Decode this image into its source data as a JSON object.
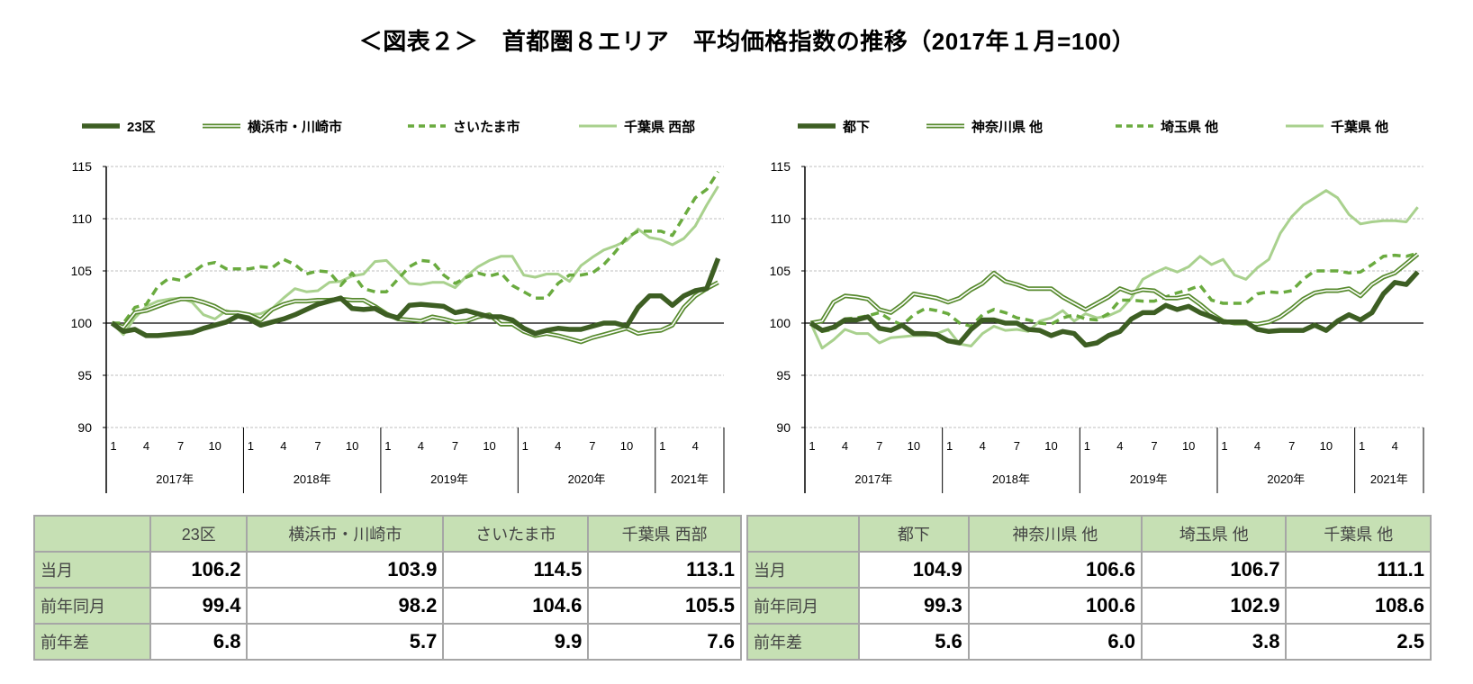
{
  "title": "＜図表２＞　首都圏８エリア　平均価格指数の推移（2017年１月=100）",
  "colors": {
    "dark": "#3d5e23",
    "medium": "#578a2e",
    "dashed": "#6aab3f",
    "light": "#a9d18e",
    "header_bg": "#c6e0b4",
    "grid": "#bfbfbf"
  },
  "chart_data": [
    {
      "type": "line",
      "ylim": [
        90,
        115
      ],
      "yticks": [
        90,
        95,
        100,
        105,
        110,
        115
      ],
      "grid": true,
      "baseline": 100,
      "legend_position": "top",
      "month_ticks": [
        "1",
        "4",
        "7",
        "10",
        "1",
        "4",
        "7",
        "10",
        "1",
        "4",
        "7",
        "10",
        "1",
        "4",
        "7",
        "10",
        "1",
        "4"
      ],
      "years": [
        "2017年",
        "2018年",
        "2019年",
        "2020年",
        "2021年"
      ],
      "x_range": [
        "2017-01",
        "2021-06"
      ],
      "series": [
        {
          "name": "23区",
          "style": "thick-dark",
          "values": [
            100,
            99.2,
            99.4,
            98.8,
            98.8,
            98.9,
            99.0,
            99.1,
            99.5,
            99.8,
            100.1,
            100.7,
            100.4,
            99.8,
            100.1,
            100.4,
            100.8,
            101.3,
            101.8,
            102.1,
            102.4,
            101.4,
            101.3,
            101.4,
            100.8,
            100.5,
            101.7,
            101.8,
            101.7,
            101.6,
            101.0,
            101.2,
            100.9,
            100.6,
            100.6,
            100.3,
            99.5,
            99.0,
            99.3,
            99.5,
            99.4,
            99.4,
            99.7,
            100.0,
            100.0,
            99.7,
            101.5,
            102.6,
            102.6,
            101.7,
            102.6,
            103.1,
            103.3,
            106.2
          ]
        },
        {
          "name": "横浜市・川崎市",
          "style": "double-medium",
          "values": [
            100,
            99.6,
            101.0,
            101.2,
            101.6,
            102.0,
            102.3,
            102.3,
            102.0,
            101.6,
            101.0,
            101.0,
            100.8,
            100.3,
            101.3,
            101.8,
            102.1,
            102.1,
            102.2,
            102.2,
            102.3,
            102.2,
            102.2,
            101.6,
            100.9,
            100.4,
            100.3,
            100.2,
            100.6,
            100.4,
            100.1,
            100.2,
            100.6,
            100.8,
            99.9,
            99.9,
            99.2,
            98.8,
            99.0,
            98.8,
            98.5,
            98.2,
            98.6,
            98.9,
            99.2,
            99.5,
            99.0,
            99.2,
            99.3,
            99.8,
            101.5,
            102.6,
            103.3,
            103.9
          ]
        },
        {
          "name": "さいたま市",
          "style": "dashed",
          "values": [
            100,
            100.0,
            101.5,
            101.8,
            103.5,
            104.3,
            104.1,
            104.8,
            105.6,
            105.8,
            105.2,
            105.2,
            105.2,
            105.4,
            105.3,
            106.1,
            105.6,
            104.7,
            105.0,
            104.9,
            103.6,
            104.8,
            103.3,
            103.0,
            103.0,
            104.2,
            105.4,
            106.0,
            105.9,
            104.6,
            103.8,
            104.4,
            104.8,
            104.5,
            104.8,
            103.6,
            103.0,
            102.4,
            102.4,
            103.8,
            104.6,
            104.6,
            104.8,
            105.6,
            106.8,
            108.2,
            108.8,
            108.8,
            108.8,
            108.4,
            110.2,
            112.0,
            112.8,
            114.5
          ]
        },
        {
          "name": "千葉県 西部",
          "style": "light",
          "values": [
            100,
            98.9,
            100.5,
            101.6,
            102.1,
            102.3,
            102.4,
            102.0,
            100.8,
            100.4,
            101.2,
            100.9,
            100.8,
            100.9,
            101.4,
            102.4,
            103.3,
            103.0,
            103.1,
            103.9,
            104.0,
            104.5,
            104.7,
            105.9,
            106.0,
            104.9,
            103.8,
            103.7,
            103.9,
            103.9,
            103.4,
            104.5,
            105.4,
            106.0,
            106.4,
            106.4,
            104.6,
            104.4,
            104.7,
            104.7,
            104.0,
            105.5,
            106.3,
            107.0,
            107.4,
            107.9,
            109.0,
            108.2,
            108.0,
            107.5,
            108.1,
            109.3,
            111.3,
            113.1
          ]
        }
      ]
    },
    {
      "type": "line",
      "ylim": [
        90,
        115
      ],
      "yticks": [
        90,
        95,
        100,
        105,
        110,
        115
      ],
      "grid": true,
      "baseline": 100,
      "legend_position": "top",
      "month_ticks": [
        "1",
        "4",
        "7",
        "10",
        "1",
        "4",
        "7",
        "10",
        "1",
        "4",
        "7",
        "10",
        "1",
        "4",
        "7",
        "10",
        "1",
        "4"
      ],
      "years": [
        "2017年",
        "2018年",
        "2019年",
        "2020年",
        "2021年"
      ],
      "x_range": [
        "2017-01",
        "2021-06"
      ],
      "series": [
        {
          "name": "都下",
          "style": "thick-dark",
          "values": [
            100,
            99.3,
            99.6,
            100.3,
            100.3,
            100.6,
            99.5,
            99.3,
            99.8,
            99.0,
            99.0,
            98.9,
            98.3,
            98.1,
            99.4,
            100.3,
            100.3,
            100.0,
            100.0,
            99.4,
            99.3,
            98.8,
            99.2,
            99.0,
            97.9,
            98.1,
            98.8,
            99.2,
            100.4,
            101.0,
            101.0,
            101.7,
            101.3,
            101.6,
            101.0,
            100.6,
            100.1,
            100.1,
            100.1,
            99.4,
            99.2,
            99.3,
            99.3,
            99.3,
            99.8,
            99.3,
            100.2,
            100.8,
            100.3,
            101.0,
            102.8,
            103.9,
            103.7,
            104.9
          ]
        },
        {
          "name": "神奈川県 他",
          "style": "double-medium",
          "values": [
            100,
            100.2,
            102.0,
            102.6,
            102.5,
            102.3,
            101.3,
            101.0,
            101.8,
            102.8,
            102.6,
            102.4,
            102.0,
            102.4,
            103.2,
            103.8,
            104.8,
            104.0,
            103.7,
            103.3,
            103.3,
            103.3,
            102.5,
            101.9,
            101.3,
            101.9,
            102.5,
            103.3,
            102.9,
            103.2,
            103.1,
            102.4,
            102.4,
            102.6,
            101.8,
            100.9,
            100.2,
            100.0,
            100.0,
            99.9,
            100.1,
            100.6,
            101.4,
            102.3,
            102.9,
            103.1,
            103.1,
            103.3,
            102.6,
            103.7,
            104.4,
            104.8,
            105.7,
            106.6
          ]
        },
        {
          "name": "埼玉県 他",
          "style": "dashed",
          "values": [
            100,
            99.2,
            99.4,
            100.4,
            100.5,
            100.7,
            101.0,
            100.3,
            99.8,
            100.8,
            101.4,
            101.2,
            100.9,
            100.0,
            99.7,
            100.8,
            101.3,
            101.0,
            100.5,
            100.3,
            100.0,
            99.9,
            100.5,
            100.8,
            100.4,
            100.3,
            100.9,
            102.2,
            102.2,
            102.1,
            102.1,
            102.5,
            102.9,
            103.2,
            103.6,
            102.2,
            101.9,
            101.9,
            101.9,
            102.8,
            103.0,
            102.9,
            103.1,
            104.2,
            105.0,
            105.0,
            105.0,
            104.8,
            104.9,
            105.6,
            106.4,
            106.5,
            106.4,
            106.7
          ]
        },
        {
          "name": "千葉県 他",
          "style": "light",
          "values": [
            100,
            97.6,
            98.4,
            99.4,
            99.0,
            99.0,
            98.1,
            98.6,
            98.7,
            98.8,
            98.8,
            99.0,
            99.4,
            98.0,
            97.8,
            99.0,
            99.7,
            99.3,
            99.4,
            99.2,
            100.2,
            100.5,
            101.2,
            100.2,
            100.9,
            100.5,
            100.7,
            101.2,
            102.4,
            104.2,
            104.8,
            105.3,
            104.9,
            105.4,
            106.4,
            105.6,
            106.1,
            104.6,
            104.2,
            105.3,
            106.1,
            108.6,
            110.2,
            111.3,
            112.0,
            112.7,
            112.0,
            110.4,
            109.5,
            109.7,
            109.8,
            109.8,
            109.7,
            111.1
          ]
        }
      ]
    }
  ],
  "tables": [
    {
      "headers": [
        "",
        "23区",
        "横浜市・川崎市",
        "さいたま市",
        "千葉県 西部"
      ],
      "rows": [
        {
          "label": "当月",
          "values": [
            "106.2",
            "103.9",
            "114.5",
            "113.1"
          ]
        },
        {
          "label": "前年同月",
          "values": [
            "99.4",
            "98.2",
            "104.6",
            "105.5"
          ]
        },
        {
          "label": "前年差",
          "values": [
            "6.8",
            "5.7",
            "9.9",
            "7.6"
          ]
        }
      ]
    },
    {
      "headers": [
        "",
        "都下",
        "神奈川県 他",
        "埼玉県 他",
        "千葉県 他"
      ],
      "rows": [
        {
          "label": "当月",
          "values": [
            "104.9",
            "106.6",
            "106.7",
            "111.1"
          ]
        },
        {
          "label": "前年同月",
          "values": [
            "99.3",
            "100.6",
            "102.9",
            "108.6"
          ]
        },
        {
          "label": "前年差",
          "values": [
            "5.6",
            "6.0",
            "3.8",
            "2.5"
          ]
        }
      ]
    }
  ]
}
